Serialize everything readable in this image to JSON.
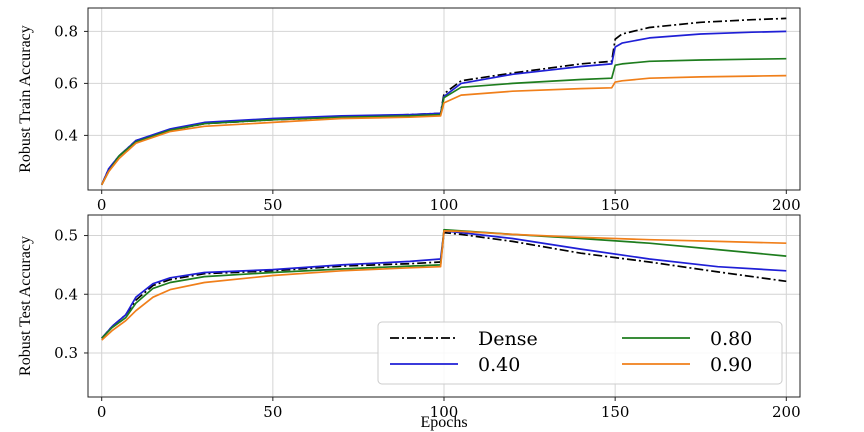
{
  "chart_data": [
    {
      "type": "line",
      "panel": "top",
      "title": "",
      "xlabel": "",
      "ylabel": "Robust Train Accuracy",
      "xlim": [
        -4,
        204
      ],
      "ylim": [
        0.19,
        0.89
      ],
      "xticks": [
        0,
        50,
        100,
        150,
        200
      ],
      "xtick_labels": [
        "0",
        "50",
        "100",
        "150",
        "200"
      ],
      "yticks": [
        0.4,
        0.6,
        0.8
      ],
      "ytick_labels": [
        "0.4",
        "0.6",
        "0.8"
      ],
      "grid": true,
      "series": [
        {
          "name": "Dense",
          "color": "#000000",
          "dash": "dashdot",
          "x": [
            0,
            2,
            5,
            10,
            20,
            30,
            50,
            70,
            90,
            99,
            100,
            105,
            120,
            140,
            149,
            150,
            152,
            160,
            175,
            190,
            200
          ],
          "y": [
            0.21,
            0.27,
            0.32,
            0.38,
            0.42,
            0.445,
            0.46,
            0.47,
            0.48,
            0.485,
            0.56,
            0.61,
            0.64,
            0.675,
            0.685,
            0.77,
            0.79,
            0.815,
            0.835,
            0.845,
            0.85
          ]
        },
        {
          "name": "0.40",
          "color": "#1f1fd6",
          "dash": "solid",
          "x": [
            0,
            2,
            5,
            10,
            20,
            30,
            50,
            70,
            90,
            99,
            100,
            105,
            120,
            140,
            149,
            150,
            152,
            160,
            175,
            190,
            200
          ],
          "y": [
            0.21,
            0.27,
            0.32,
            0.38,
            0.425,
            0.45,
            0.465,
            0.475,
            0.48,
            0.485,
            0.55,
            0.6,
            0.635,
            0.665,
            0.675,
            0.74,
            0.755,
            0.775,
            0.79,
            0.797,
            0.8
          ]
        },
        {
          "name": "0.80",
          "color": "#1e7d1e",
          "dash": "solid",
          "x": [
            0,
            2,
            5,
            10,
            20,
            30,
            50,
            70,
            90,
            99,
            100,
            105,
            120,
            140,
            149,
            150,
            152,
            160,
            175,
            190,
            200
          ],
          "y": [
            0.21,
            0.26,
            0.32,
            0.375,
            0.42,
            0.445,
            0.46,
            0.47,
            0.475,
            0.48,
            0.545,
            0.585,
            0.6,
            0.615,
            0.62,
            0.67,
            0.675,
            0.685,
            0.69,
            0.693,
            0.695
          ]
        },
        {
          "name": "0.90",
          "color": "#f07f1a",
          "dash": "solid",
          "x": [
            0,
            2,
            5,
            10,
            20,
            30,
            50,
            70,
            90,
            99,
            100,
            105,
            120,
            140,
            149,
            150,
            152,
            160,
            175,
            190,
            200
          ],
          "y": [
            0.21,
            0.26,
            0.31,
            0.37,
            0.415,
            0.435,
            0.45,
            0.465,
            0.47,
            0.475,
            0.525,
            0.555,
            0.57,
            0.58,
            0.583,
            0.605,
            0.61,
            0.62,
            0.625,
            0.628,
            0.63
          ]
        }
      ]
    },
    {
      "type": "line",
      "panel": "bottom",
      "title": "",
      "xlabel": "Epochs",
      "ylabel": "Robust Test Accuracy",
      "xlim": [
        -4,
        204
      ],
      "ylim": [
        0.225,
        0.535
      ],
      "xticks": [
        0,
        50,
        100,
        150,
        200
      ],
      "xtick_labels": [
        "0",
        "50",
        "100",
        "150",
        "200"
      ],
      "yticks": [
        0.3,
        0.4,
        0.5
      ],
      "ytick_labels": [
        "0.3",
        "0.4",
        "0.5"
      ],
      "grid": true,
      "legend": {
        "position": "lower-right",
        "columns": 2
      },
      "series": [
        {
          "name": "Dense",
          "color": "#000000",
          "dash": "dashdot",
          "x": [
            0,
            3,
            7,
            10,
            15,
            20,
            30,
            50,
            70,
            90,
            99,
            100,
            105,
            120,
            140,
            160,
            180,
            200
          ],
          "y": [
            0.325,
            0.345,
            0.365,
            0.39,
            0.415,
            0.425,
            0.435,
            0.44,
            0.448,
            0.452,
            0.455,
            0.505,
            0.502,
            0.49,
            0.47,
            0.455,
            0.438,
            0.422
          ]
        },
        {
          "name": "0.40",
          "color": "#1f1fd6",
          "dash": "solid",
          "x": [
            0,
            3,
            7,
            10,
            15,
            20,
            30,
            50,
            70,
            90,
            99,
            100,
            105,
            120,
            140,
            160,
            180,
            200
          ],
          "y": [
            0.325,
            0.345,
            0.365,
            0.395,
            0.418,
            0.428,
            0.437,
            0.442,
            0.45,
            0.456,
            0.46,
            0.508,
            0.505,
            0.495,
            0.477,
            0.46,
            0.447,
            0.44
          ]
        },
        {
          "name": "0.80",
          "color": "#1e7d1e",
          "dash": "solid",
          "x": [
            0,
            3,
            7,
            10,
            15,
            20,
            30,
            50,
            70,
            90,
            99,
            100,
            105,
            120,
            140,
            160,
            180,
            200
          ],
          "y": [
            0.325,
            0.343,
            0.36,
            0.385,
            0.41,
            0.42,
            0.43,
            0.437,
            0.443,
            0.448,
            0.45,
            0.51,
            0.508,
            0.502,
            0.495,
            0.487,
            0.476,
            0.465
          ]
        },
        {
          "name": "0.90",
          "color": "#f07f1a",
          "dash": "solid",
          "x": [
            0,
            3,
            7,
            10,
            15,
            20,
            30,
            50,
            70,
            90,
            99,
            100,
            105,
            120,
            140,
            160,
            180,
            200
          ],
          "y": [
            0.322,
            0.338,
            0.355,
            0.372,
            0.395,
            0.408,
            0.42,
            0.432,
            0.44,
            0.445,
            0.447,
            0.508,
            0.507,
            0.502,
            0.497,
            0.493,
            0.49,
            0.487
          ]
        }
      ]
    }
  ]
}
